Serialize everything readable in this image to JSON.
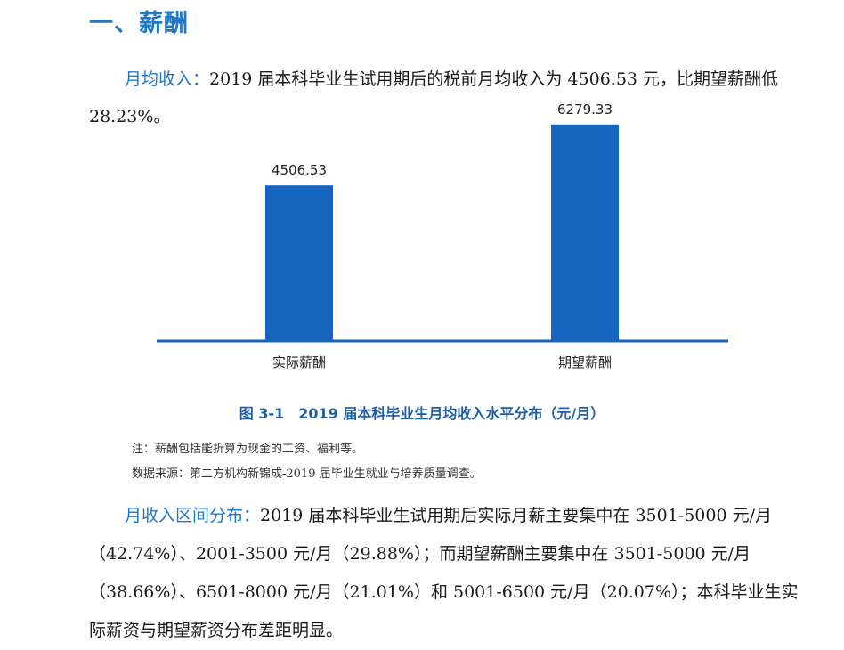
{
  "section": {
    "title": "一、薪酬"
  },
  "paragraph1": {
    "lead": "月均收入：",
    "text": "2019 届本科毕业生试用期后的税前月均收入为 4506.53 元，比期望薪酬低 28.23%。"
  },
  "chart_data": {
    "type": "bar",
    "categories": [
      "实际薪酬",
      "期望薪酬"
    ],
    "values": [
      4506.53,
      6279.33
    ],
    "value_labels": [
      "4506.53",
      "6279.33"
    ],
    "bar_color": "#1565c0",
    "axis_color": "#1565c0",
    "ylim": [
      0,
      7000
    ],
    "grid": false,
    "title": "",
    "xlabel": "",
    "ylabel": ""
  },
  "caption": "图 3-1　2019 届本科毕业生月均收入水平分布（元/月）",
  "notes": {
    "note": "注：薪酬包括能折算为现金的工资、福利等。",
    "source": "数据来源：第二方机构新锦成-2019 届毕业生就业与培养质量调查。"
  },
  "paragraph2": {
    "lead": "月收入区间分布：",
    "text": "2019 届本科毕业生试用期后实际月薪主要集中在 3501-5000 元/月（42.74%）、2001-3500 元/月（29.88%）；而期望薪酬主要集中在 3501-5000 元/月（38.66%）、6501-8000 元/月（21.01%）和 5001-6500 元/月（20.07%）；本科毕业生实际薪资与期望薪资分布差距明显。"
  }
}
